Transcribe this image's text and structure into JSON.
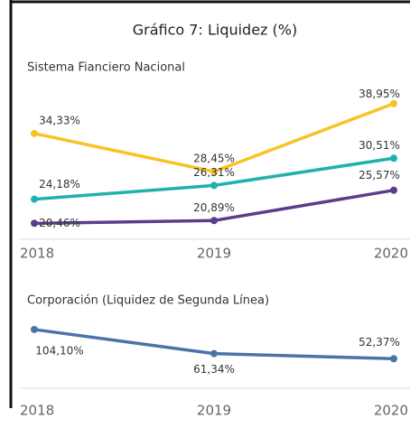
{
  "title": "Gráfico 7: Liquidez (%)",
  "chart_data": [
    {
      "type": "line",
      "title": "Sistema Fianciero Nacional",
      "categories": [
        "2018",
        "2019",
        "2020"
      ],
      "ylim": [
        18,
        41
      ],
      "series": [
        {
          "name": "",
          "color": "#f7c325",
          "values": [
            34.33,
            28.45,
            38.95
          ],
          "value_labels": [
            "34,33%",
            "28,45%",
            "38,95%"
          ]
        },
        {
          "name": "",
          "color": "#21b1ad",
          "values": [
            24.18,
            26.31,
            30.51
          ],
          "value_labels": [
            "24,18%",
            "26,31%",
            "30,51%"
          ]
        },
        {
          "name": "",
          "color": "#5a3e8a",
          "values": [
            20.46,
            20.89,
            25.57
          ],
          "value_labels": [
            "20,46%",
            "20,89%",
            "25,57%"
          ]
        }
      ]
    },
    {
      "type": "line",
      "title": "Corporación (Liquidez de Segunda Línea)",
      "categories": [
        "2018",
        "2019",
        "2020"
      ],
      "ylim": [
        0,
        128
      ],
      "series": [
        {
          "name": "",
          "color": "#4a74a8",
          "values": [
            104.1,
            61.34,
            52.37
          ],
          "value_labels": [
            "104,10%",
            "61,34%",
            "52,37%"
          ]
        }
      ]
    }
  ]
}
